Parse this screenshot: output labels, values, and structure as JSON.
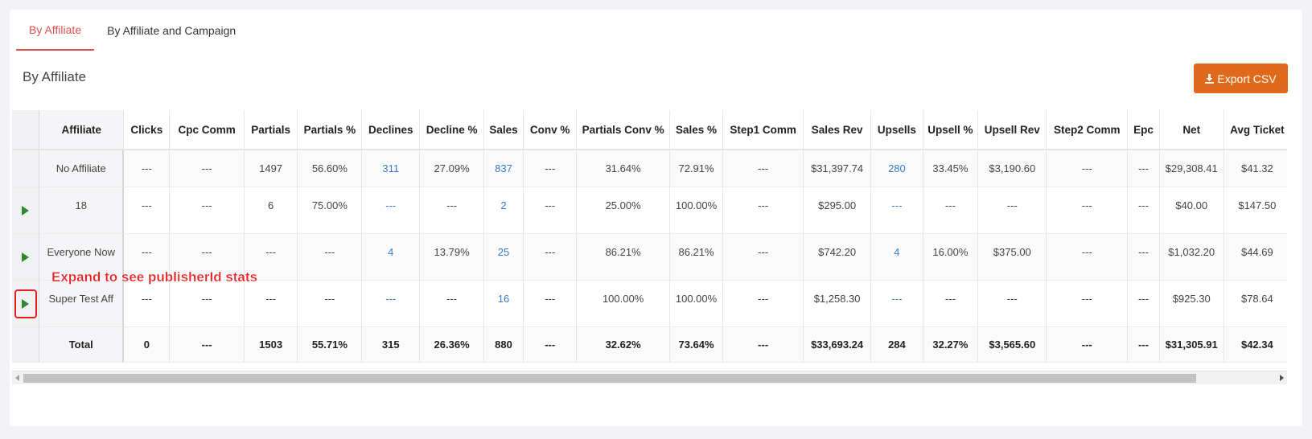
{
  "tabs": [
    {
      "label": "By Affiliate",
      "active": true
    },
    {
      "label": "By Affiliate and Campaign",
      "active": false
    }
  ],
  "section_title": "By Affiliate",
  "export_button": {
    "label": "Export CSV",
    "icon": "download-icon",
    "color": "#e06a1b"
  },
  "annotation": "Expand to see publisherId stats",
  "colors": {
    "accent": "#d9534f",
    "link": "#3a7bc8",
    "expand_arrow": "#2f8a2f",
    "annotation": "#e62020"
  },
  "table": {
    "columns": [
      "Affiliate",
      "Clicks",
      "Cpc Comm",
      "Partials",
      "Partials %",
      "Declines",
      "Decline %",
      "Sales",
      "Conv %",
      "Partials Conv %",
      "Sales %",
      "Step1 Comm",
      "Sales Rev",
      "Upsells",
      "Upsell %",
      "Upsell Rev",
      "Step2 Comm",
      "Epc",
      "Net",
      "Avg Ticket"
    ],
    "rows": [
      {
        "expandable": false,
        "cells": [
          "No Affiliate",
          "---",
          "---",
          "1497",
          "56.60%",
          "311",
          "27.09%",
          "837",
          "---",
          "31.64%",
          "72.91%",
          "---",
          "$31,397.74",
          "280",
          "33.45%",
          "$3,190.60",
          "---",
          "---",
          "$29,308.41",
          "$41.32"
        ]
      },
      {
        "expandable": true,
        "cells": [
          "18",
          "---",
          "---",
          "6",
          "75.00%",
          "---",
          "---",
          "2",
          "---",
          "25.00%",
          "100.00%",
          "---",
          "$295.00",
          "---",
          "---",
          "---",
          "---",
          "---",
          "$40.00",
          "$147.50"
        ]
      },
      {
        "expandable": true,
        "cells": [
          "Everyone Now",
          "---",
          "---",
          "---",
          "---",
          "4",
          "13.79%",
          "25",
          "---",
          "86.21%",
          "86.21%",
          "---",
          "$742.20",
          "4",
          "16.00%",
          "$375.00",
          "---",
          "---",
          "$1,032.20",
          "$44.69"
        ]
      },
      {
        "expandable": true,
        "highlighted": true,
        "cells": [
          "Super Test Aff",
          "---",
          "---",
          "---",
          "---",
          "---",
          "---",
          "16",
          "---",
          "100.00%",
          "100.00%",
          "---",
          "$1,258.30",
          "---",
          "---",
          "---",
          "---",
          "---",
          "$925.30",
          "$78.64"
        ]
      }
    ],
    "total": [
      "Total",
      "0",
      "---",
      "1503",
      "55.71%",
      "315",
      "26.36%",
      "880",
      "---",
      "32.62%",
      "73.64%",
      "---",
      "$33,693.24",
      "284",
      "32.27%",
      "$3,565.60",
      "---",
      "---",
      "$31,305.91",
      "$42.34"
    ]
  }
}
